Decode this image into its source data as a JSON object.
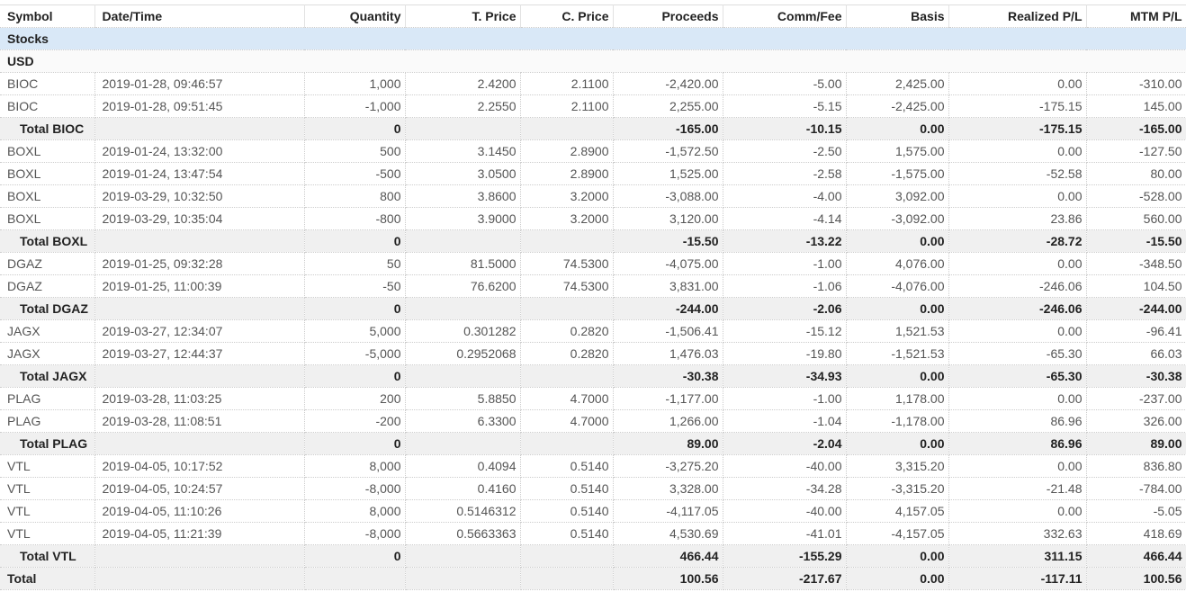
{
  "columns": [
    "Symbol",
    "Date/Time",
    "Quantity",
    "T. Price",
    "C. Price",
    "Proceeds",
    "Comm/Fee",
    "Basis",
    "Realized P/L",
    "MTM P/L"
  ],
  "section": "Stocks",
  "currency": "USD",
  "rows": [
    {
      "type": "trade",
      "cells": [
        "BIOC",
        "2019-01-28, 09:46:57",
        "1,000",
        "2.4200",
        "2.1100",
        "-2,420.00",
        "-5.00",
        "2,425.00",
        "0.00",
        "-310.00"
      ]
    },
    {
      "type": "trade",
      "cells": [
        "BIOC",
        "2019-01-28, 09:51:45",
        "-1,000",
        "2.2550",
        "2.1100",
        "2,255.00",
        "-5.15",
        "-2,425.00",
        "-175.15",
        "145.00"
      ]
    },
    {
      "type": "total",
      "cells": [
        "Total BIOC",
        "",
        "0",
        "",
        "",
        "-165.00",
        "-10.15",
        "0.00",
        "-175.15",
        "-165.00"
      ]
    },
    {
      "type": "trade",
      "cells": [
        "BOXL",
        "2019-01-24, 13:32:00",
        "500",
        "3.1450",
        "2.8900",
        "-1,572.50",
        "-2.50",
        "1,575.00",
        "0.00",
        "-127.50"
      ]
    },
    {
      "type": "trade",
      "cells": [
        "BOXL",
        "2019-01-24, 13:47:54",
        "-500",
        "3.0500",
        "2.8900",
        "1,525.00",
        "-2.58",
        "-1,575.00",
        "-52.58",
        "80.00"
      ]
    },
    {
      "type": "trade",
      "cells": [
        "BOXL",
        "2019-03-29, 10:32:50",
        "800",
        "3.8600",
        "3.2000",
        "-3,088.00",
        "-4.00",
        "3,092.00",
        "0.00",
        "-528.00"
      ]
    },
    {
      "type": "trade",
      "cells": [
        "BOXL",
        "2019-03-29, 10:35:04",
        "-800",
        "3.9000",
        "3.2000",
        "3,120.00",
        "-4.14",
        "-3,092.00",
        "23.86",
        "560.00"
      ]
    },
    {
      "type": "total",
      "cells": [
        "Total BOXL",
        "",
        "0",
        "",
        "",
        "-15.50",
        "-13.22",
        "0.00",
        "-28.72",
        "-15.50"
      ]
    },
    {
      "type": "trade",
      "cells": [
        "DGAZ",
        "2019-01-25, 09:32:28",
        "50",
        "81.5000",
        "74.5300",
        "-4,075.00",
        "-1.00",
        "4,076.00",
        "0.00",
        "-348.50"
      ]
    },
    {
      "type": "trade",
      "cells": [
        "DGAZ",
        "2019-01-25, 11:00:39",
        "-50",
        "76.6200",
        "74.5300",
        "3,831.00",
        "-1.06",
        "-4,076.00",
        "-246.06",
        "104.50"
      ]
    },
    {
      "type": "total",
      "cells": [
        "Total DGAZ",
        "",
        "0",
        "",
        "",
        "-244.00",
        "-2.06",
        "0.00",
        "-246.06",
        "-244.00"
      ]
    },
    {
      "type": "trade",
      "cells": [
        "JAGX",
        "2019-03-27, 12:34:07",
        "5,000",
        "0.301282",
        "0.2820",
        "-1,506.41",
        "-15.12",
        "1,521.53",
        "0.00",
        "-96.41"
      ]
    },
    {
      "type": "trade",
      "cells": [
        "JAGX",
        "2019-03-27, 12:44:37",
        "-5,000",
        "0.2952068",
        "0.2820",
        "1,476.03",
        "-19.80",
        "-1,521.53",
        "-65.30",
        "66.03"
      ]
    },
    {
      "type": "total",
      "cells": [
        "Total JAGX",
        "",
        "0",
        "",
        "",
        "-30.38",
        "-34.93",
        "0.00",
        "-65.30",
        "-30.38"
      ]
    },
    {
      "type": "trade",
      "cells": [
        "PLAG",
        "2019-03-28, 11:03:25",
        "200",
        "5.8850",
        "4.7000",
        "-1,177.00",
        "-1.00",
        "1,178.00",
        "0.00",
        "-237.00"
      ]
    },
    {
      "type": "trade",
      "cells": [
        "PLAG",
        "2019-03-28, 11:08:51",
        "-200",
        "6.3300",
        "4.7000",
        "1,266.00",
        "-1.04",
        "-1,178.00",
        "86.96",
        "326.00"
      ]
    },
    {
      "type": "total",
      "cells": [
        "Total PLAG",
        "",
        "0",
        "",
        "",
        "89.00",
        "-2.04",
        "0.00",
        "86.96",
        "89.00"
      ]
    },
    {
      "type": "trade",
      "cells": [
        "VTL",
        "2019-04-05, 10:17:52",
        "8,000",
        "0.4094",
        "0.5140",
        "-3,275.20",
        "-40.00",
        "3,315.20",
        "0.00",
        "836.80"
      ]
    },
    {
      "type": "trade",
      "cells": [
        "VTL",
        "2019-04-05, 10:24:57",
        "-8,000",
        "0.4160",
        "0.5140",
        "3,328.00",
        "-34.28",
        "-3,315.20",
        "-21.48",
        "-784.00"
      ]
    },
    {
      "type": "trade",
      "cells": [
        "VTL",
        "2019-04-05, 11:10:26",
        "8,000",
        "0.5146312",
        "0.5140",
        "-4,117.05",
        "-40.00",
        "4,157.05",
        "0.00",
        "-5.05"
      ]
    },
    {
      "type": "trade",
      "cells": [
        "VTL",
        "2019-04-05, 11:21:39",
        "-8,000",
        "0.5663363",
        "0.5140",
        "4,530.69",
        "-41.01",
        "-4,157.05",
        "332.63",
        "418.69"
      ]
    },
    {
      "type": "total",
      "cells": [
        "Total VTL",
        "",
        "0",
        "",
        "",
        "466.44",
        "-155.29",
        "0.00",
        "311.15",
        "466.44"
      ]
    },
    {
      "type": "grand",
      "cells": [
        "Total",
        "",
        "",
        "",
        "",
        "100.56",
        "-217.67",
        "0.00",
        "-117.11",
        "100.56"
      ]
    }
  ]
}
